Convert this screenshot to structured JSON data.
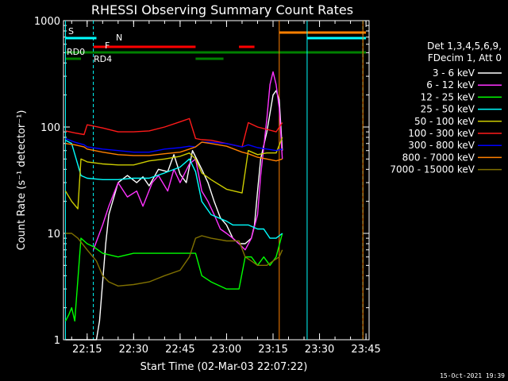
{
  "chart_data": {
    "type": "line",
    "title": "RHESSI Observing Summary Count Rates",
    "xlabel": "Start Time (02-Mar-03 22:07:22)",
    "ylabel": "Count Rate (s⁻¹ detector⁻¹)",
    "y_scale": "log",
    "ylim": [
      1,
      1000
    ],
    "xlim": [
      "22:07:22",
      "23:46:00"
    ],
    "x_ticks": [
      "22:15",
      "22:30",
      "22:45",
      "23:00",
      "23:15",
      "23:30",
      "23:45"
    ],
    "y_ticks": [
      "1",
      "10",
      "100",
      "1000"
    ],
    "timestamp": "15-Oct-2021 19:39",
    "legend_position": "right",
    "legend_header": [
      "Det 1,3,4,5,6,9,",
      "FDecim 1, Att 0"
    ],
    "flags": {
      "s_label": "S",
      "n_label": "N",
      "f_label": "F",
      "rd0_label": "RD0",
      "rd4_label": "RD4"
    },
    "series": [
      {
        "name": "3 - 6 keV",
        "color": "#ffffff",
        "x": [
          "22:08",
          "22:14",
          "22:18",
          "22:19",
          "22:21",
          "22:22",
          "22:25",
          "22:28",
          "22:31",
          "22:33",
          "22:35",
          "22:38",
          "22:41",
          "22:43",
          "22:45",
          "22:47",
          "22:49",
          "22:52",
          "22:54",
          "22:56",
          "22:58",
          "23:00",
          "23:02",
          "23:04",
          "23:06",
          "23:08",
          "23:09",
          "23:10",
          "23:11",
          "23:13",
          "23:15",
          "23:16",
          "23:17",
          "23:18"
        ],
        "y": [
          1,
          1,
          1,
          1.5,
          8,
          15,
          30,
          35,
          30,
          34,
          28,
          40,
          38,
          55,
          36,
          30,
          60,
          40,
          30,
          20,
          14,
          12,
          9,
          8,
          8,
          9,
          12,
          25,
          50,
          90,
          200,
          220,
          180,
          60
        ]
      },
      {
        "name": "6 - 12 keV",
        "color": "#ff33ff",
        "x": [
          "22:17",
          "22:20",
          "22:22",
          "22:25",
          "22:28",
          "22:31",
          "22:33",
          "22:36",
          "22:38",
          "22:41",
          "22:43",
          "22:45",
          "22:48",
          "22:50",
          "22:52",
          "22:54",
          "22:56",
          "22:58",
          "23:00",
          "23:02",
          "23:04",
          "23:06",
          "23:08",
          "23:10",
          "23:11",
          "23:13",
          "23:14",
          "23:15",
          "23:16",
          "23:17",
          "23:18"
        ],
        "y": [
          7,
          12,
          18,
          30,
          22,
          25,
          18,
          30,
          35,
          25,
          40,
          30,
          45,
          50,
          25,
          20,
          15,
          11,
          10,
          9,
          8,
          7,
          9,
          15,
          35,
          120,
          250,
          330,
          250,
          150,
          50
        ]
      },
      {
        "name": "12 - 25 keV",
        "color": "#00ff00",
        "x": [
          "22:08",
          "22:09",
          "22:10",
          "22:11",
          "22:13",
          "22:15",
          "22:17",
          "22:20",
          "22:25",
          "22:30",
          "22:35",
          "22:40",
          "22:45",
          "22:50",
          "22:52",
          "22:55",
          "23:00",
          "23:04",
          "23:06",
          "23:08",
          "23:10",
          "23:12",
          "23:14",
          "23:16",
          "23:18"
        ],
        "y": [
          1.5,
          1.7,
          2,
          1.5,
          9,
          8,
          7.5,
          6.5,
          6,
          6.5,
          6.5,
          6.5,
          6.5,
          6.5,
          4,
          3.5,
          3,
          3,
          6,
          6,
          5,
          6,
          5,
          6,
          10
        ]
      },
      {
        "name": "25 - 50 keV",
        "color": "#00ffff",
        "x": [
          "22:08",
          "22:10",
          "22:13",
          "22:15",
          "22:20",
          "22:25",
          "22:30",
          "22:35",
          "22:40",
          "22:45",
          "22:48",
          "22:50",
          "22:52",
          "22:55",
          "23:00",
          "23:02",
          "23:05",
          "23:07",
          "23:10",
          "23:12",
          "23:14",
          "23:16",
          "23:18"
        ],
        "y": [
          75,
          70,
          35,
          33,
          32,
          32,
          33,
          33,
          37,
          42,
          50,
          38,
          20,
          15,
          13,
          12,
          12,
          12,
          11,
          11,
          9,
          9,
          10
        ]
      },
      {
        "name": "50 - 100 keV",
        "color": "#cccc00",
        "x": [
          "22:08",
          "22:10",
          "22:12",
          "22:13",
          "22:15",
          "22:20",
          "22:25",
          "22:30",
          "22:35",
          "22:40",
          "22:45",
          "22:48",
          "22:50",
          "22:52",
          "22:55",
          "23:00",
          "23:05",
          "23:07",
          "23:10",
          "23:13",
          "23:16",
          "23:18"
        ],
        "y": [
          25,
          20,
          17,
          50,
          47,
          45,
          44,
          44,
          48,
          50,
          53,
          57,
          50,
          37,
          32,
          26,
          24,
          60,
          55,
          57,
          57,
          80
        ]
      },
      {
        "name": "100 - 300 keV",
        "color": "#ff1a1a",
        "x": [
          "22:08",
          "22:11",
          "22:14",
          "22:15",
          "22:20",
          "22:25",
          "22:30",
          "22:35",
          "22:40",
          "22:45",
          "22:48",
          "22:50",
          "22:52",
          "22:55",
          "23:00",
          "23:05",
          "23:07",
          "23:10",
          "23:13",
          "23:16",
          "23:18"
        ],
        "y": [
          92,
          88,
          85,
          105,
          98,
          90,
          90,
          92,
          100,
          112,
          120,
          78,
          76,
          75,
          70,
          65,
          110,
          100,
          95,
          90,
          110
        ]
      },
      {
        "name": "300 - 800 keV",
        "color": "#0000ff",
        "x": [
          "22:08",
          "22:11",
          "22:14",
          "22:15",
          "22:20",
          "22:25",
          "22:30",
          "22:35",
          "22:40",
          "22:45",
          "22:48",
          "22:50",
          "22:52",
          "22:55",
          "23:00",
          "23:05",
          "23:07",
          "23:10",
          "23:13",
          "23:16",
          "23:18"
        ],
        "y": [
          78,
          72,
          68,
          65,
          62,
          60,
          58,
          58,
          62,
          64,
          66,
          65,
          72,
          72,
          70,
          65,
          68,
          64,
          62,
          60,
          62
        ]
      },
      {
        "name": "800 - 7000 keV",
        "color": "#ff8000",
        "x": [
          "22:08",
          "22:11",
          "22:14",
          "22:15",
          "22:20",
          "22:25",
          "22:30",
          "22:35",
          "22:40",
          "22:45",
          "22:48",
          "22:50",
          "22:52",
          "22:55",
          "23:00",
          "23:05",
          "23:07",
          "23:10",
          "23:13",
          "23:16",
          "23:18"
        ],
        "y": [
          70,
          68,
          65,
          62,
          58,
          55,
          54,
          54,
          56,
          58,
          62,
          65,
          72,
          70,
          66,
          58,
          56,
          52,
          50,
          48,
          50
        ]
      },
      {
        "name": "7000 - 15000 keV",
        "color": "#807000",
        "x": [
          "22:08",
          "22:10",
          "22:12",
          "22:15",
          "22:18",
          "22:20",
          "22:22",
          "22:25",
          "22:30",
          "22:35",
          "22:40",
          "22:45",
          "22:48",
          "22:50",
          "22:52",
          "22:55",
          "23:00",
          "23:04",
          "23:06",
          "23:08",
          "23:10",
          "23:13",
          "23:15",
          "23:17",
          "23:18"
        ],
        "y": [
          10,
          10,
          9,
          7,
          5.5,
          4,
          3.5,
          3.2,
          3.3,
          3.5,
          4,
          4.5,
          6,
          9,
          9.5,
          9,
          8.5,
          8.5,
          6,
          5.5,
          5,
          5,
          5.5,
          6,
          7
        ]
      }
    ]
  }
}
